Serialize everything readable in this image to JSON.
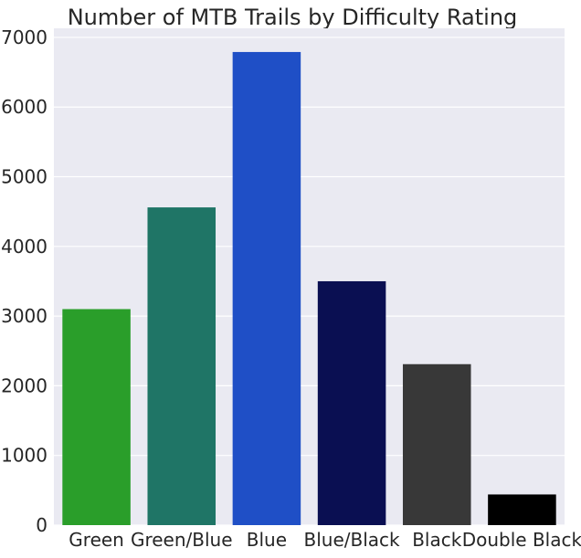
{
  "chart_data": {
    "type": "bar",
    "title": "Number of MTB Trails by Difficulty Rating",
    "xlabel": "",
    "ylabel": "",
    "categories": [
      "Green",
      "Green/Blue",
      "Blue",
      "Blue/Black",
      "Black",
      "Double Black"
    ],
    "values": [
      3100,
      4560,
      6790,
      3500,
      2310,
      440
    ],
    "colors": [
      "#2a9e2a",
      "#1f7566",
      "#1f4fc6",
      "#0a0f52",
      "#383838",
      "#000000"
    ],
    "ylim": [
      0,
      7130
    ],
    "yticks": [
      0,
      1000,
      2000,
      3000,
      4000,
      5000,
      6000,
      7000
    ],
    "grid": true,
    "plot_background": "#eaeaf2",
    "grid_color": "#ffffff"
  }
}
